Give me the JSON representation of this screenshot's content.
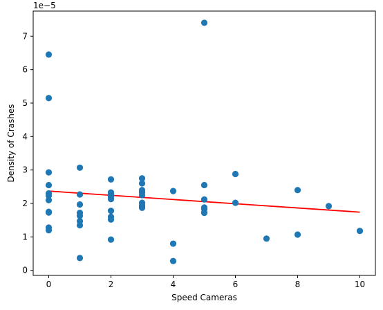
{
  "chart_data": {
    "type": "scatter",
    "title": "",
    "xlabel": "Speed Cameras",
    "ylabel": "Density of Crashes",
    "y_offset_text": "1e−5",
    "xlim": [
      -0.5,
      10.5
    ],
    "ylim": [
      -0.15,
      7.75
    ],
    "xticks": [
      0,
      2,
      4,
      6,
      8,
      10
    ],
    "yticks": [
      0,
      1,
      2,
      3,
      4,
      5,
      6,
      7
    ],
    "grid": false,
    "legend": "none",
    "colors": {
      "points": "#1f77b4",
      "fit_line": "#ff0000"
    },
    "points": {
      "x": [
        0,
        0,
        0,
        0,
        0,
        0,
        0,
        0,
        0,
        0,
        0,
        1,
        1,
        1,
        1,
        1,
        1,
        1,
        1,
        2,
        2,
        2,
        2,
        2,
        2,
        2,
        2,
        2,
        3,
        3,
        3,
        3,
        3,
        3,
        3,
        3,
        3,
        4,
        4,
        4,
        5,
        5,
        5,
        5,
        5,
        5,
        5,
        6,
        6,
        7,
        8,
        8,
        9,
        10
      ],
      "y": [
        6.45,
        5.15,
        2.93,
        2.55,
        2.3,
        2.23,
        2.1,
        1.75,
        1.28,
        1.2,
        1.73,
        3.07,
        2.27,
        1.97,
        1.72,
        1.63,
        1.47,
        1.35,
        0.37,
        2.72,
        2.33,
        2.27,
        2.2,
        2.13,
        1.78,
        1.6,
        1.52,
        0.92,
        2.75,
        2.6,
        2.4,
        2.33,
        2.25,
        2.02,
        1.95,
        1.9,
        1.87,
        2.37,
        0.8,
        0.28,
        7.4,
        2.55,
        2.12,
        1.88,
        1.83,
        1.73,
        1.72,
        2.88,
        2.02,
        0.95,
        2.4,
        1.07,
        1.92,
        1.18
      ]
    },
    "fit_line": {
      "x": [
        0,
        10
      ],
      "y": [
        2.37,
        1.74
      ]
    }
  }
}
